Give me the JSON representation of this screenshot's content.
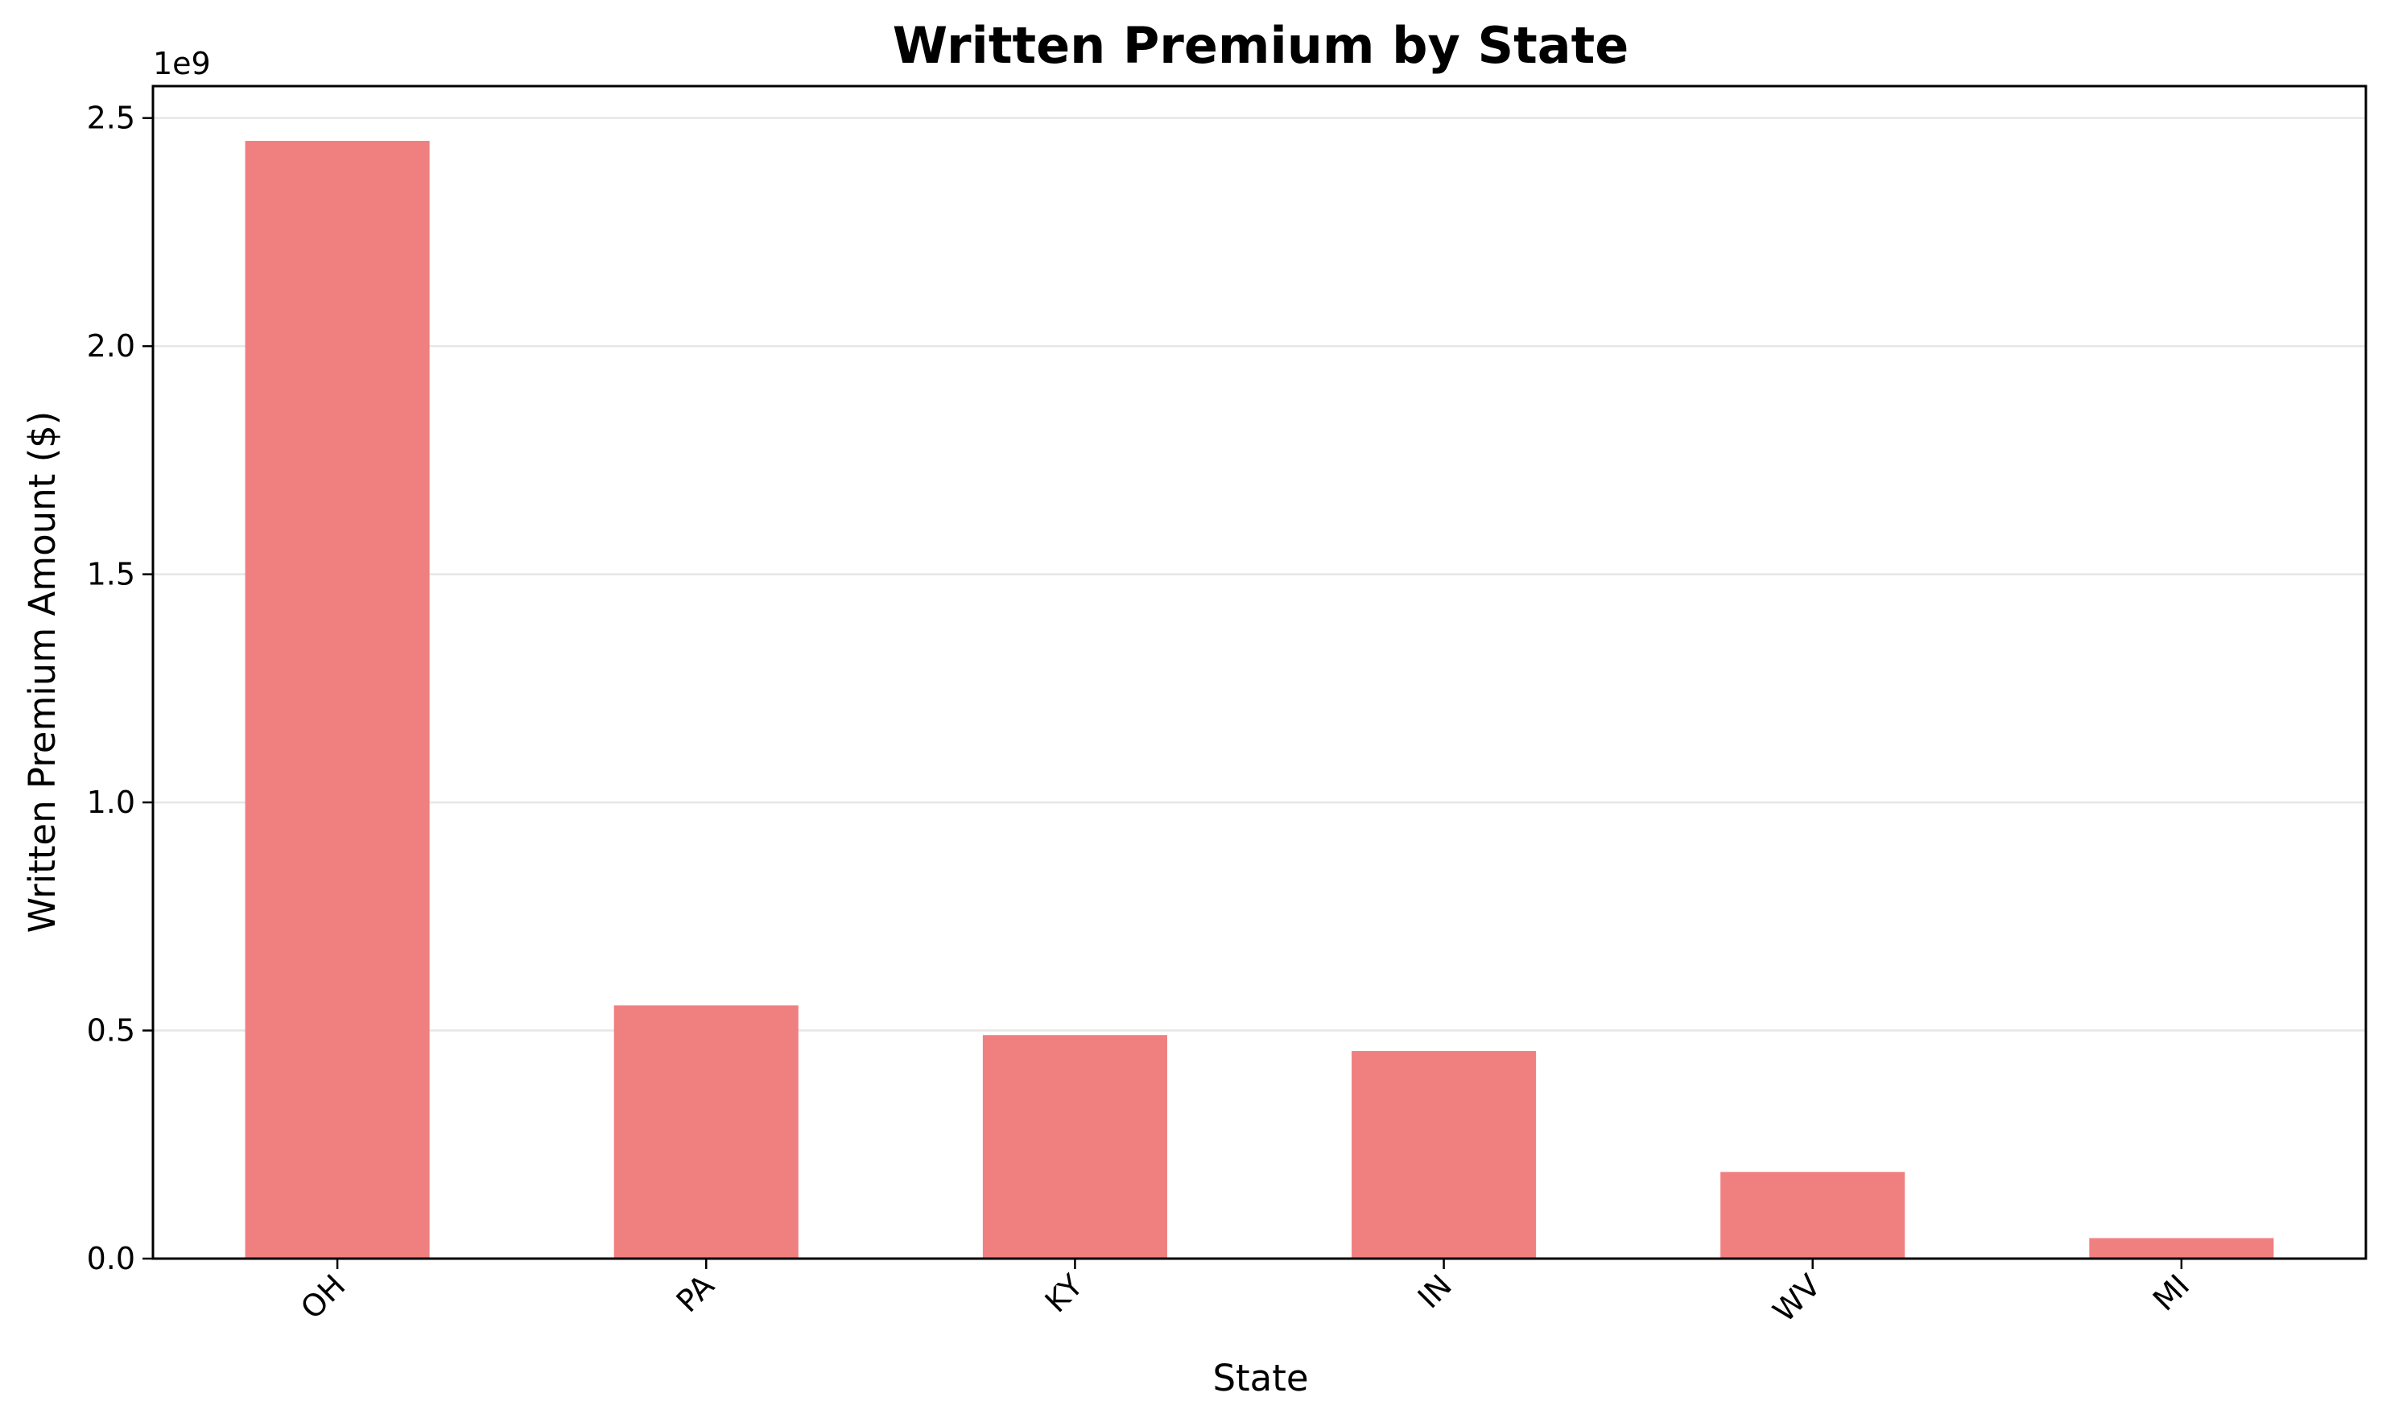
{
  "chart_data": {
    "type": "bar",
    "title": "Written Premium by State",
    "xlabel": "State",
    "ylabel": "Written Premium Amount ($)",
    "y_offset_label": "1e9",
    "categories": [
      "OH",
      "PA",
      "KY",
      "IN",
      "WV",
      "MI"
    ],
    "values": [
      2450000000,
      555000000,
      490000000,
      455000000,
      190000000,
      45000000
    ],
    "ylim": [
      0,
      2570000000
    ],
    "yticks": [
      0,
      500000000,
      1000000000,
      1500000000,
      2000000000,
      2500000000
    ],
    "ytick_labels": [
      "0.0",
      "0.5",
      "1.0",
      "1.5",
      "2.0",
      "2.5"
    ],
    "bar_color": "#f08080",
    "grid": "horizontal",
    "legend": "none"
  }
}
